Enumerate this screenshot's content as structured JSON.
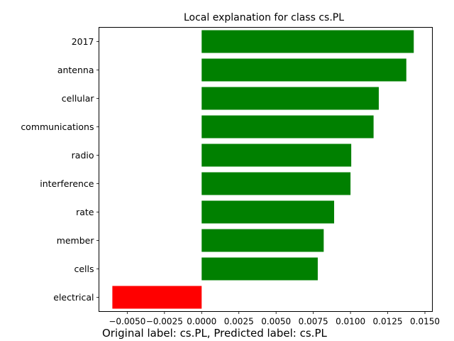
{
  "chart_data": {
    "type": "bar",
    "orientation": "horizontal",
    "title": "Local explanation for class cs.PL",
    "caption": "Original label: cs.PL, Predicted label: cs.PL",
    "categories": [
      "2017",
      "antenna",
      "cellular",
      "communications",
      "radio",
      "interference",
      "rate",
      "member",
      "cells",
      "electrical"
    ],
    "values": [
      0.01425,
      0.01375,
      0.0119,
      0.01155,
      0.01005,
      0.01,
      0.0089,
      0.0082,
      0.0078,
      -0.006
    ],
    "xlim": [
      -0.0069,
      0.0155
    ],
    "xticks": [
      -0.005,
      -0.0025,
      0.0,
      0.0025,
      0.005,
      0.0075,
      0.01,
      0.0125,
      0.015
    ],
    "xtick_labels": [
      "−0.0050",
      "−0.0025",
      "0.0000",
      "0.0025",
      "0.0050",
      "0.0075",
      "0.0100",
      "0.0125",
      "0.0150"
    ],
    "xlabel": "",
    "ylabel": "",
    "grid": false,
    "colors": {
      "positive": "#008000",
      "negative": "#ff0000"
    }
  }
}
